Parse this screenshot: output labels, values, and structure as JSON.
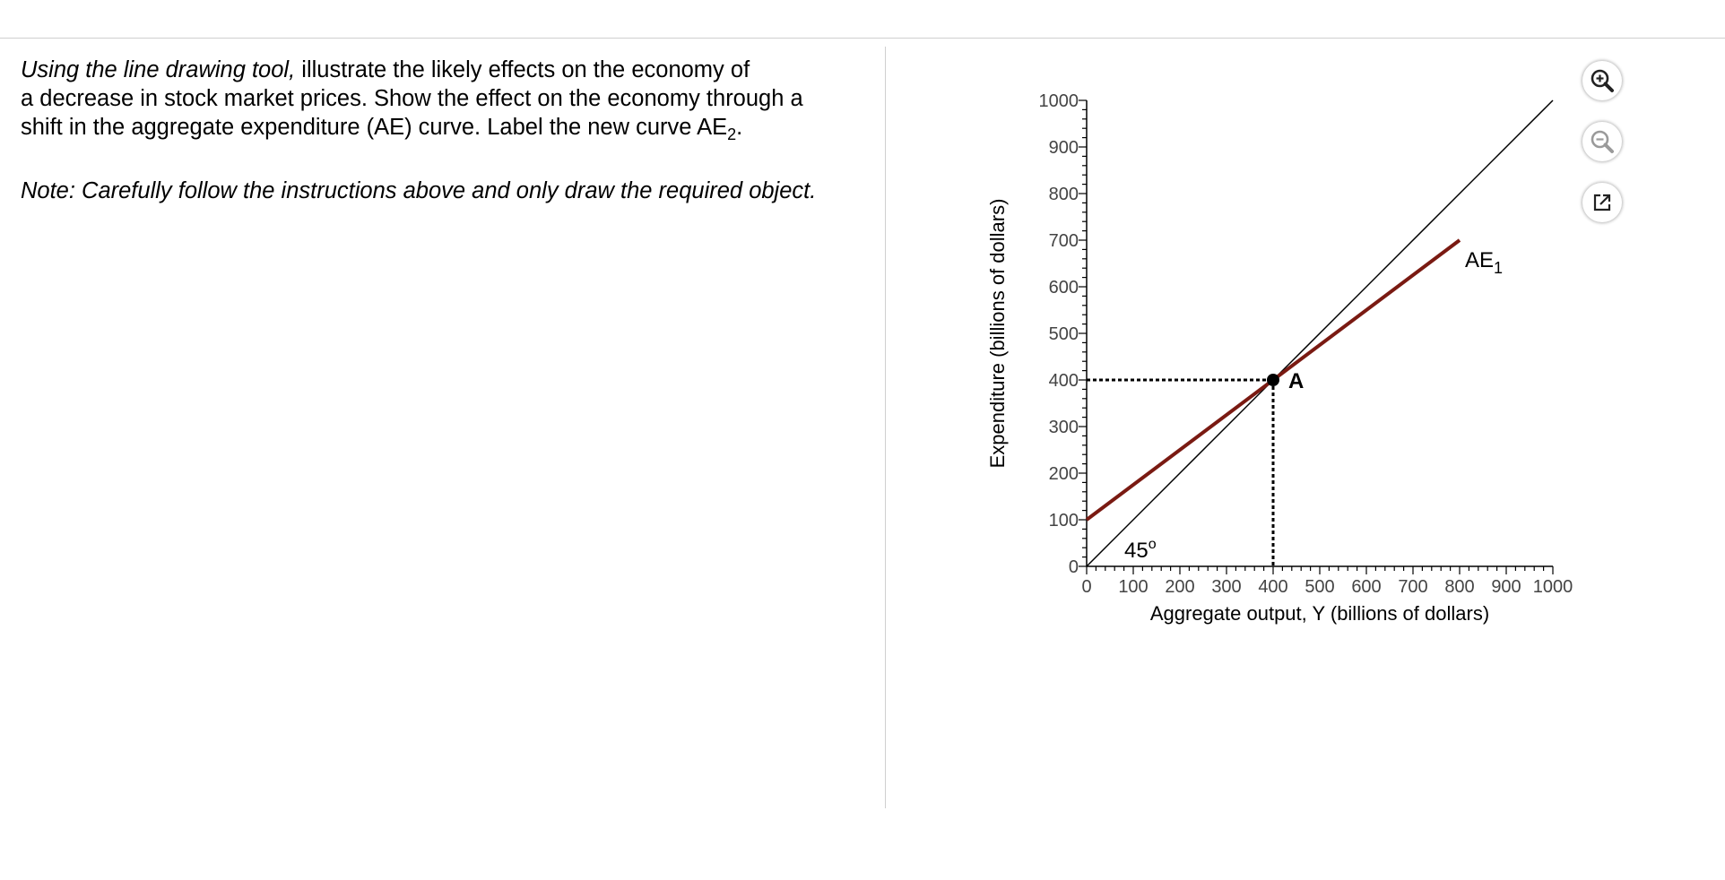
{
  "instructions": {
    "line1_italic": "Using the line drawing tool,",
    "line1_rest": " illustrate the likely effects on the economy of",
    "line2": "a decrease in stock market prices.  Show the effect on the economy through a",
    "line3_pre": "shift in the aggregate expenditure (AE) curve.  Label the new curve AE",
    "line3_sub": "2",
    "line3_post": ".",
    "note": "Note: Carefully follow the instructions above and only draw the required object."
  },
  "toolbar": {
    "zoom_in_icon": "zoom-in-icon",
    "zoom_out_icon": "zoom-out-icon",
    "popout_icon": "popout-icon"
  },
  "colors": {
    "ae_curve": "#7a1a12",
    "line": "#000000"
  },
  "chart_data": {
    "type": "line",
    "xlabel": "Aggregate output, Y (billions of dollars)",
    "ylabel": "Expenditure (billions of dollars)",
    "xlim": [
      0,
      1000
    ],
    "ylim": [
      0,
      1000
    ],
    "x_ticks": [
      0,
      100,
      200,
      300,
      400,
      500,
      600,
      700,
      800,
      900,
      1000
    ],
    "y_ticks": [
      0,
      100,
      200,
      300,
      400,
      500,
      600,
      700,
      800,
      900,
      1000
    ],
    "x_tick_labels": [
      "0",
      "100",
      "200",
      "300",
      "400",
      "500",
      "600",
      "700",
      "800",
      "900",
      "1000"
    ],
    "y_tick_labels": [
      "0",
      "100",
      "200",
      "300",
      "400",
      "500",
      "600",
      "700",
      "800",
      "900",
      "1000"
    ],
    "series": [
      {
        "name": "45°",
        "label_main": "45",
        "label_sup": "o",
        "points": [
          [
            0,
            0
          ],
          [
            1000,
            1000
          ]
        ]
      },
      {
        "name": "AE",
        "label_main": "AE",
        "label_sub": "1",
        "points": [
          [
            0,
            100
          ],
          [
            800,
            700
          ]
        ]
      }
    ],
    "point": {
      "label": "A",
      "x": 400,
      "y": 400
    }
  }
}
